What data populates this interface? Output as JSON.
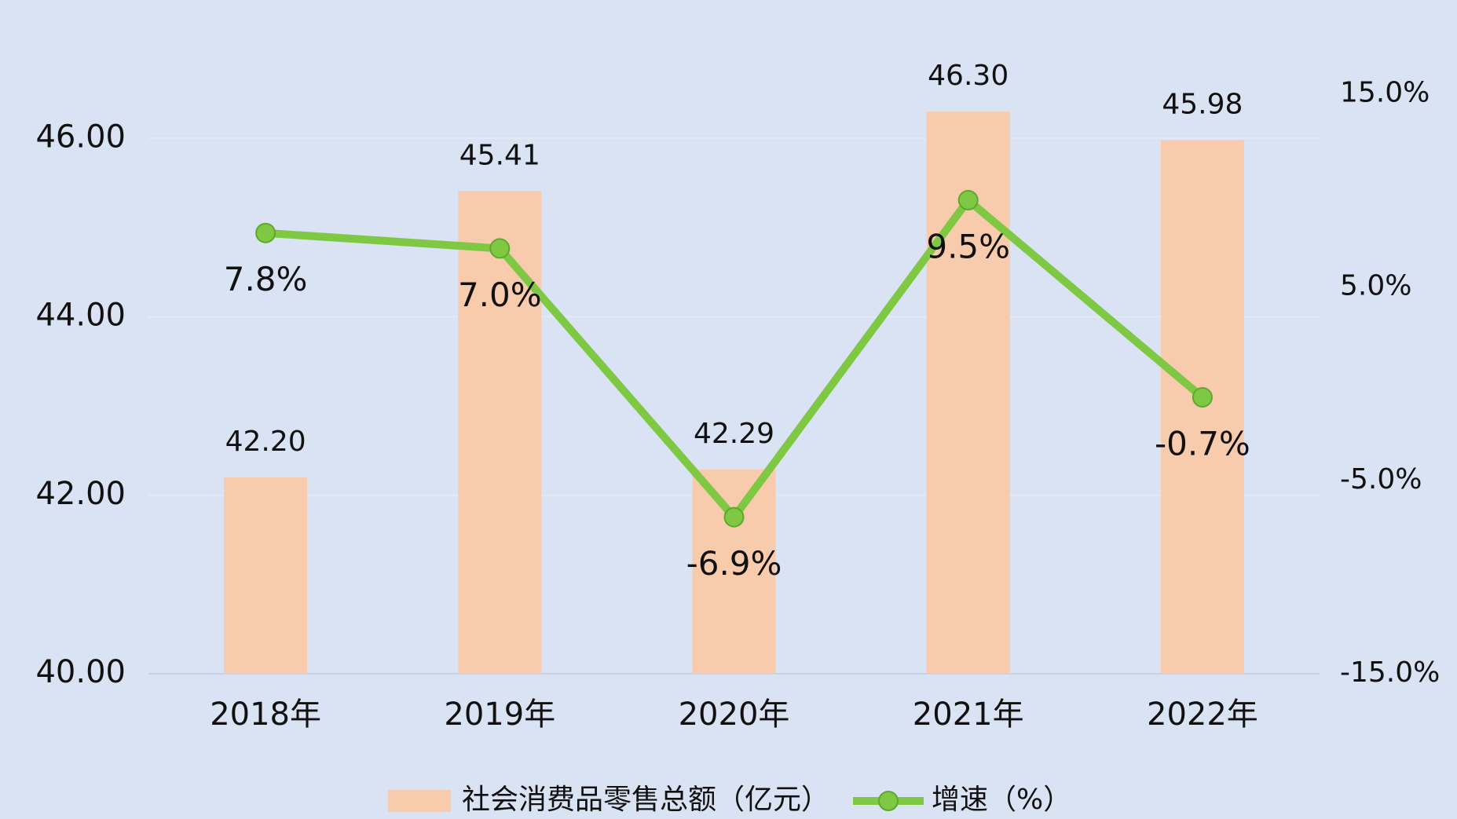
{
  "chart_data": {
    "type": "bar_line",
    "categories": [
      "2018年",
      "2019年",
      "2020年",
      "2021年",
      "2022年"
    ],
    "series": [
      {
        "name": "社会消费品零售总额（亿元）",
        "type": "bar",
        "color": "#f8cbad",
        "values": [
          42.2,
          45.41,
          42.29,
          46.3,
          45.98
        ],
        "value_labels": [
          "42.20",
          "45.41",
          "42.29",
          "46.30",
          "45.98"
        ]
      },
      {
        "name": "增速（%）",
        "type": "line",
        "axis": "y2",
        "color": "#7ec843",
        "values": [
          7.8,
          7.0,
          -6.9,
          9.5,
          -0.7
        ],
        "value_labels": [
          "7.8%",
          "7.0%",
          "-6.9%",
          "9.5%",
          "-0.7%"
        ]
      }
    ],
    "ylim": [
      40,
      46.5
    ],
    "yticks": [
      {
        "value": 40,
        "label": "40.00"
      },
      {
        "value": 42,
        "label": "42.00"
      },
      {
        "value": 44,
        "label": "44.00"
      },
      {
        "value": 46,
        "label": "46.00"
      }
    ],
    "y2lim": [
      -15,
      15
    ],
    "y2ticks": [
      {
        "value": -15,
        "label": "-15.0%"
      },
      {
        "value": -5,
        "label": "-5.0%"
      },
      {
        "value": 5,
        "label": "5.0%"
      },
      {
        "value": 15,
        "label": "15.0%"
      }
    ],
    "grid": true,
    "legend": "bottom",
    "background": "#dae3f3"
  }
}
